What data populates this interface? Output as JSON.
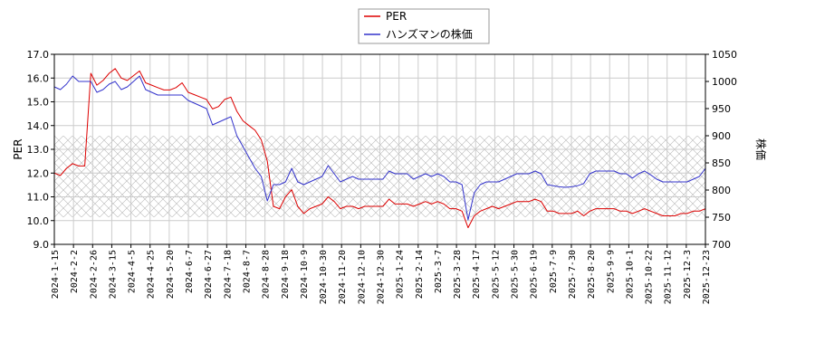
{
  "chart_data": {
    "type": "line",
    "ylabel_left": "PER",
    "ylabel_right": "株価",
    "ylim_left": [
      9.0,
      17.0
    ],
    "ylim_right": [
      700,
      1050
    ],
    "yticks_left": [
      "9.0",
      "10.0",
      "11.0",
      "12.0",
      "13.0",
      "14.0",
      "15.0",
      "16.0",
      "17.0"
    ],
    "yticks_right": [
      "700",
      "750",
      "800",
      "850",
      "900",
      "950",
      "1000",
      "1050"
    ],
    "xticks": [
      "2024-1-15",
      "2024-2-2",
      "2024-2-26",
      "2024-3-15",
      "2024-4-5",
      "2024-4-25",
      "2024-5-20",
      "2024-6-7",
      "2024-6-27",
      "2024-7-18",
      "2024-8-7",
      "2024-8-28",
      "2024-9-18",
      "2024-10-9",
      "2024-10-30",
      "2024-11-20",
      "2024-12-10",
      "2024-12-30",
      "2025-1-24",
      "2025-2-14",
      "2025-3-7",
      "2025-3-28",
      "2025-4-17",
      "2025-5-12",
      "2025-5-30",
      "2025-6-19",
      "2025-7-9",
      "2025-7-30",
      "2025-8-20",
      "2025-9-9",
      "2025-10-1",
      "2025-10-22",
      "2025-11-12",
      "2025-12-3",
      "2025-12-23"
    ],
    "grid": true,
    "legend_position": "top-center",
    "hatched_band_right": [
      750,
      900
    ],
    "series": [
      {
        "name": "PER",
        "color": "#dd0000",
        "axis": "left",
        "values": [
          12.0,
          11.9,
          12.2,
          12.4,
          12.3,
          12.3,
          16.2,
          15.7,
          15.9,
          16.2,
          16.4,
          16.0,
          15.9,
          16.1,
          16.3,
          15.8,
          15.7,
          15.6,
          15.5,
          15.5,
          15.6,
          15.8,
          15.4,
          15.3,
          15.2,
          15.1,
          14.7,
          14.8,
          15.1,
          15.2,
          14.6,
          14.2,
          14.0,
          13.8,
          13.4,
          12.5,
          10.6,
          10.5,
          11.0,
          11.3,
          10.6,
          10.3,
          10.5,
          10.6,
          10.7,
          11.0,
          10.8,
          10.5,
          10.6,
          10.6,
          10.5,
          10.6,
          10.6,
          10.6,
          10.6,
          10.9,
          10.7,
          10.7,
          10.7,
          10.6,
          10.7,
          10.8,
          10.7,
          10.8,
          10.7,
          10.5,
          10.5,
          10.4,
          9.7,
          10.2,
          10.4,
          10.5,
          10.6,
          10.5,
          10.6,
          10.7,
          10.8,
          10.8,
          10.8,
          10.9,
          10.8,
          10.4,
          10.4,
          10.3,
          10.3,
          10.3,
          10.4,
          10.2,
          10.4,
          10.5,
          10.5,
          10.5,
          10.5,
          10.4,
          10.4,
          10.3,
          10.4,
          10.5,
          10.4,
          10.3,
          10.2,
          10.2,
          10.2,
          10.3,
          10.3,
          10.4,
          10.4,
          10.5
        ]
      },
      {
        "name": "ハンズマンの株価",
        "color": "#3333cc",
        "axis": "right",
        "values": [
          990,
          985,
          995,
          1010,
          1000,
          1000,
          1000,
          980,
          985,
          995,
          1000,
          985,
          990,
          1000,
          1010,
          985,
          980,
          975,
          975,
          975,
          975,
          975,
          965,
          960,
          955,
          950,
          920,
          925,
          930,
          935,
          900,
          880,
          860,
          840,
          825,
          780,
          810,
          810,
          815,
          840,
          815,
          810,
          815,
          820,
          825,
          845,
          830,
          815,
          820,
          825,
          820,
          820,
          820,
          820,
          820,
          835,
          830,
          830,
          830,
          820,
          825,
          830,
          825,
          830,
          825,
          815,
          815,
          810,
          745,
          795,
          810,
          815,
          815,
          815,
          820,
          825,
          830,
          830,
          830,
          835,
          830,
          810,
          808,
          806,
          805,
          806,
          808,
          812,
          830,
          835,
          835,
          835,
          835,
          830,
          830,
          822,
          830,
          835,
          828,
          820,
          815,
          815,
          815,
          815,
          815,
          820,
          825,
          840
        ]
      }
    ]
  }
}
